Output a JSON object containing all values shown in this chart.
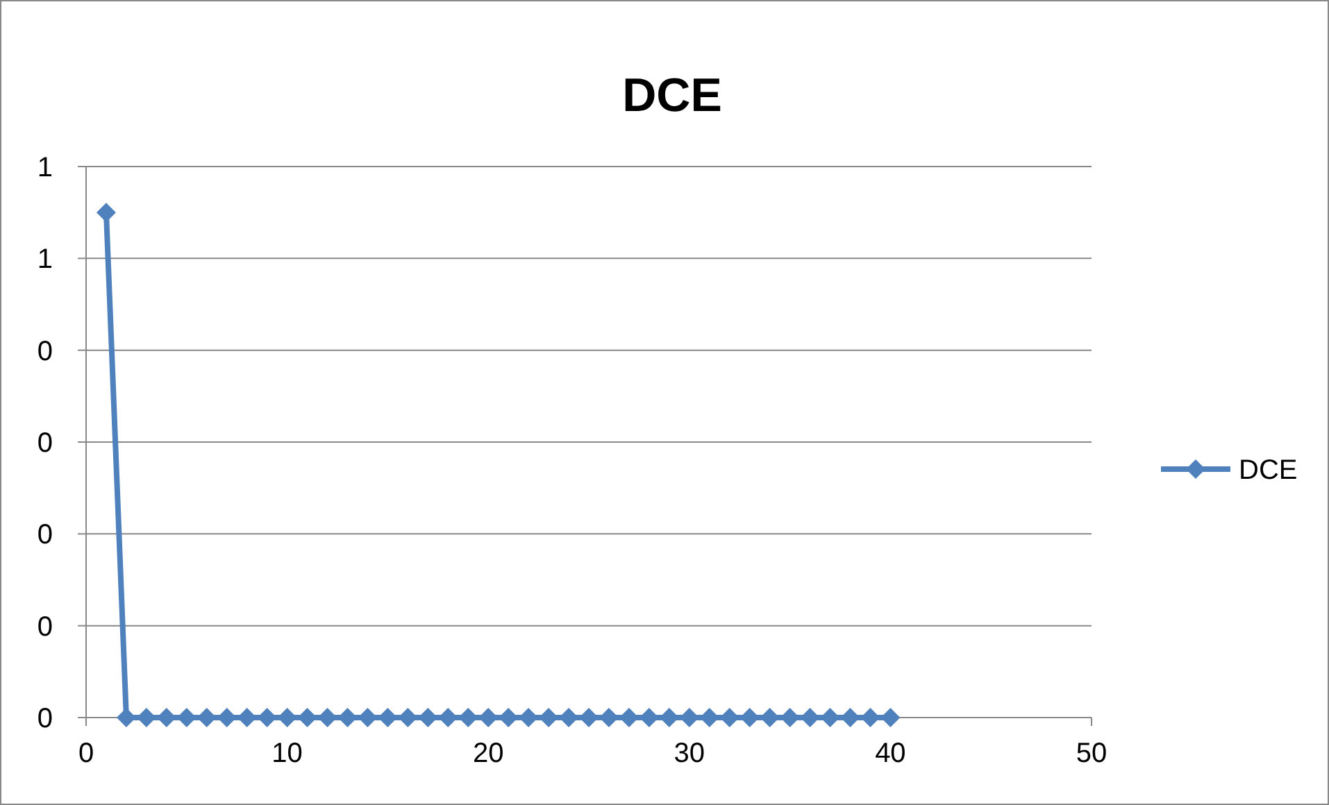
{
  "chart_data": {
    "type": "line",
    "title": "DCE",
    "x": [
      1,
      2,
      3,
      4,
      5,
      6,
      7,
      8,
      9,
      10,
      11,
      12,
      13,
      14,
      15,
      16,
      17,
      18,
      19,
      20,
      21,
      22,
      23,
      24,
      25,
      26,
      27,
      28,
      29,
      30,
      31,
      32,
      33,
      34,
      35,
      36,
      37,
      38,
      39,
      40
    ],
    "series": [
      {
        "name": "DCE",
        "color": "#4f81bd",
        "values": [
          0.55,
          0,
          0,
          0,
          0,
          0,
          0,
          0,
          0,
          0,
          0,
          0,
          0,
          0,
          0,
          0,
          0,
          0,
          0,
          0,
          0,
          0,
          0,
          0,
          0,
          0,
          0,
          0,
          0,
          0,
          0,
          0,
          0,
          0,
          0,
          0,
          0,
          0,
          0,
          0
        ]
      }
    ],
    "xlim": [
      0,
      50
    ],
    "xticks": [
      0,
      10,
      20,
      30,
      40,
      50
    ],
    "ylim": [
      0,
      0.6
    ],
    "yticks": [
      {
        "value": 0,
        "label": "0"
      },
      {
        "value": 0.1,
        "label": "0"
      },
      {
        "value": 0.2,
        "label": "0"
      },
      {
        "value": 0.3,
        "label": "0"
      },
      {
        "value": 0.4,
        "label": "0"
      },
      {
        "value": 0.5,
        "label": "1"
      },
      {
        "value": 0.6,
        "label": "1"
      }
    ],
    "grid": "y",
    "legend": "right",
    "marker": "diamond",
    "line_style": "solid"
  }
}
